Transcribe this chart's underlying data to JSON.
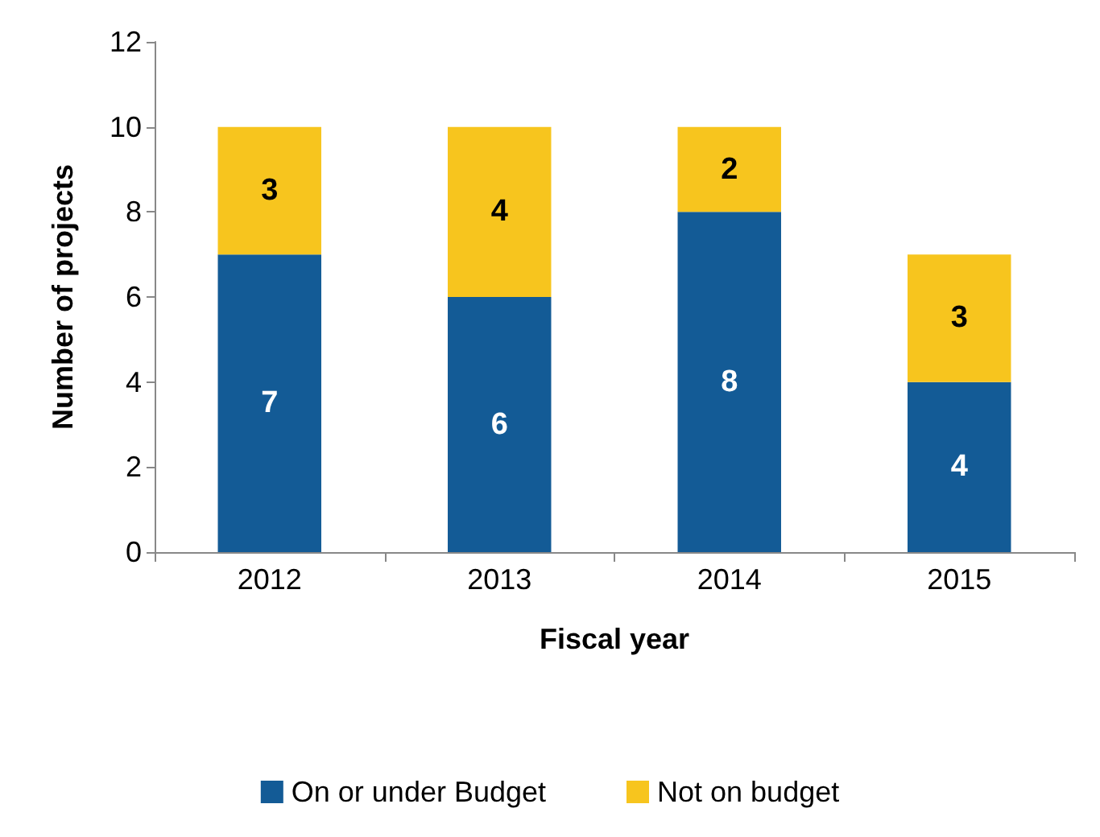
{
  "chart_data": {
    "type": "bar",
    "stacked": true,
    "xlabel": "Fiscal year",
    "ylabel": "Number of projects",
    "categories": [
      "2012",
      "2013",
      "2014",
      "2015"
    ],
    "series": [
      {
        "name": "On or under Budget",
        "color": "#135b96",
        "values": [
          7,
          6,
          8,
          4
        ]
      },
      {
        "name": "Not on budget",
        "color": "#f7c51e",
        "values": [
          3,
          4,
          2,
          3
        ]
      }
    ],
    "ylim": [
      0,
      12
    ],
    "yticks": [
      0,
      2,
      4,
      6,
      8,
      10,
      12
    ],
    "data_labels": true,
    "legend": "bottom"
  }
}
